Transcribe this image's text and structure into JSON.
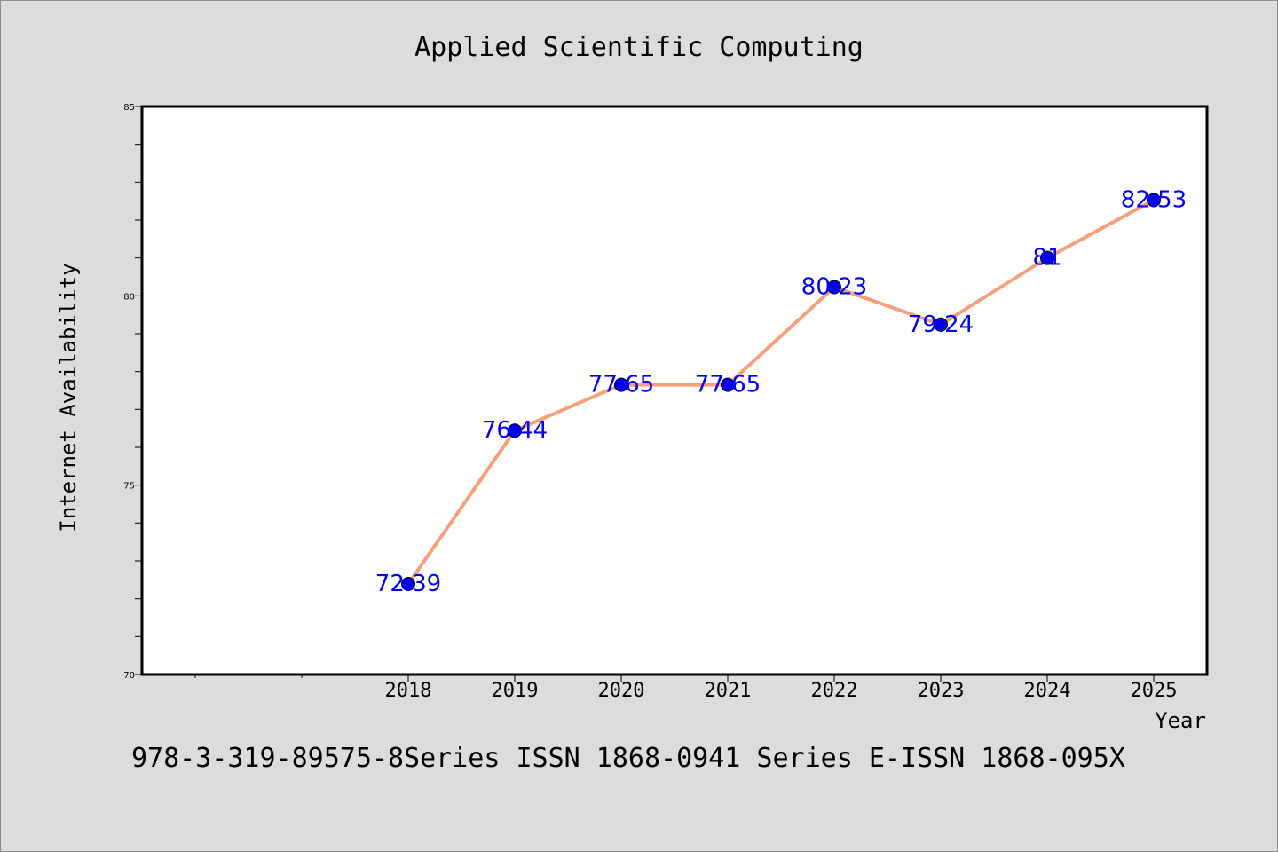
{
  "chart_data": {
    "type": "line",
    "title": "Applied Scientific Computing",
    "xlabel": "Year",
    "ylabel": "Internet Availability",
    "categories": [
      "2018",
      "2019",
      "2020",
      "2021",
      "2022",
      "2023",
      "2024",
      "2025"
    ],
    "series": [
      {
        "values": [
          72.39,
          76.44,
          77.65,
          77.65,
          80.23,
          79.24,
          81,
          82.53
        ],
        "data_labels": [
          "72.39",
          "76.44",
          "77.65",
          "77.65",
          "80.23",
          "79.24",
          "81",
          "82.53"
        ]
      }
    ],
    "ylim": [
      70,
      85
    ],
    "yticks": [
      "70",
      "75",
      "80",
      "85"
    ],
    "grid": false,
    "colors": {
      "line": "#f5a07a",
      "marker": "#0000ee",
      "data_label": "#0000ee",
      "background": "#dcdcdc",
      "plot_background": "#ffffff"
    }
  },
  "footer_text": "978-3-319-89575-8Series ISSN 1868-0941 Series E-ISSN 1868-095X"
}
